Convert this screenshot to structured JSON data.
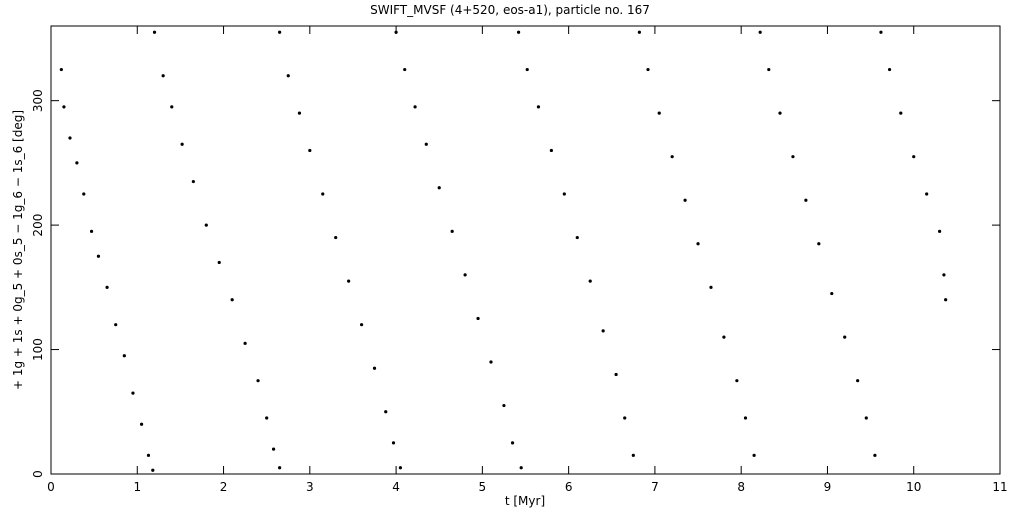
{
  "chart_data": {
    "type": "scatter",
    "title": "SWIFT_MVSF (4+520, eos-a1), particle no. 167",
    "x_label": "t [Myr]",
    "y_label": "+ 1g + 1s + 0g_5 + 0s_5 − 1g_6 − 1s_6 [deg]",
    "xlim": [
      0,
      11
    ],
    "xticks": [
      0,
      1,
      2,
      3,
      4,
      5,
      6,
      7,
      8,
      9,
      10,
      11
    ],
    "ylim": [
      0,
      360
    ],
    "yticks": [
      0,
      100,
      200,
      300
    ],
    "color": "#000000",
    "x": [
      0.12,
      0.15,
      0.22,
      0.3,
      0.38,
      0.47,
      0.55,
      0.65,
      0.75,
      0.85,
      0.95,
      1.05,
      1.13,
      1.18,
      1.2,
      1.3,
      1.4,
      1.52,
      1.65,
      1.8,
      1.95,
      2.1,
      2.25,
      2.4,
      2.5,
      2.58,
      2.65,
      2.65,
      2.75,
      2.88,
      3.0,
      3.15,
      3.3,
      3.45,
      3.6,
      3.75,
      3.88,
      3.97,
      4.05,
      4.0,
      4.1,
      4.22,
      4.35,
      4.5,
      4.65,
      4.8,
      4.95,
      5.1,
      5.25,
      5.35,
      5.45,
      5.42,
      5.52,
      5.65,
      5.8,
      5.95,
      6.1,
      6.25,
      6.4,
      6.55,
      6.65,
      6.75,
      6.82,
      6.92,
      7.05,
      7.2,
      7.35,
      7.5,
      7.65,
      7.8,
      7.95,
      8.05,
      8.15,
      8.22,
      8.32,
      8.45,
      8.6,
      8.75,
      8.9,
      9.05,
      9.2,
      9.35,
      9.45,
      9.55,
      9.62,
      9.72,
      9.85,
      10.0,
      10.15,
      10.3,
      10.35,
      10.37
    ],
    "values": [
      325,
      295,
      270,
      250,
      225,
      195,
      175,
      150,
      120,
      95,
      65,
      40,
      15,
      3,
      355,
      320,
      295,
      265,
      235,
      200,
      170,
      140,
      105,
      75,
      45,
      20,
      5,
      355,
      320,
      290,
      260,
      225,
      190,
      155,
      120,
      85,
      50,
      25,
      5,
      355,
      325,
      295,
      265,
      230,
      195,
      160,
      125,
      90,
      55,
      25,
      5,
      355,
      325,
      295,
      260,
      225,
      190,
      155,
      115,
      80,
      45,
      15,
      355,
      325,
      290,
      255,
      220,
      185,
      150,
      110,
      75,
      45,
      15,
      355,
      325,
      290,
      255,
      220,
      185,
      145,
      110,
      75,
      45,
      15,
      355,
      325,
      290,
      255,
      225,
      195,
      160,
      140
    ]
  }
}
